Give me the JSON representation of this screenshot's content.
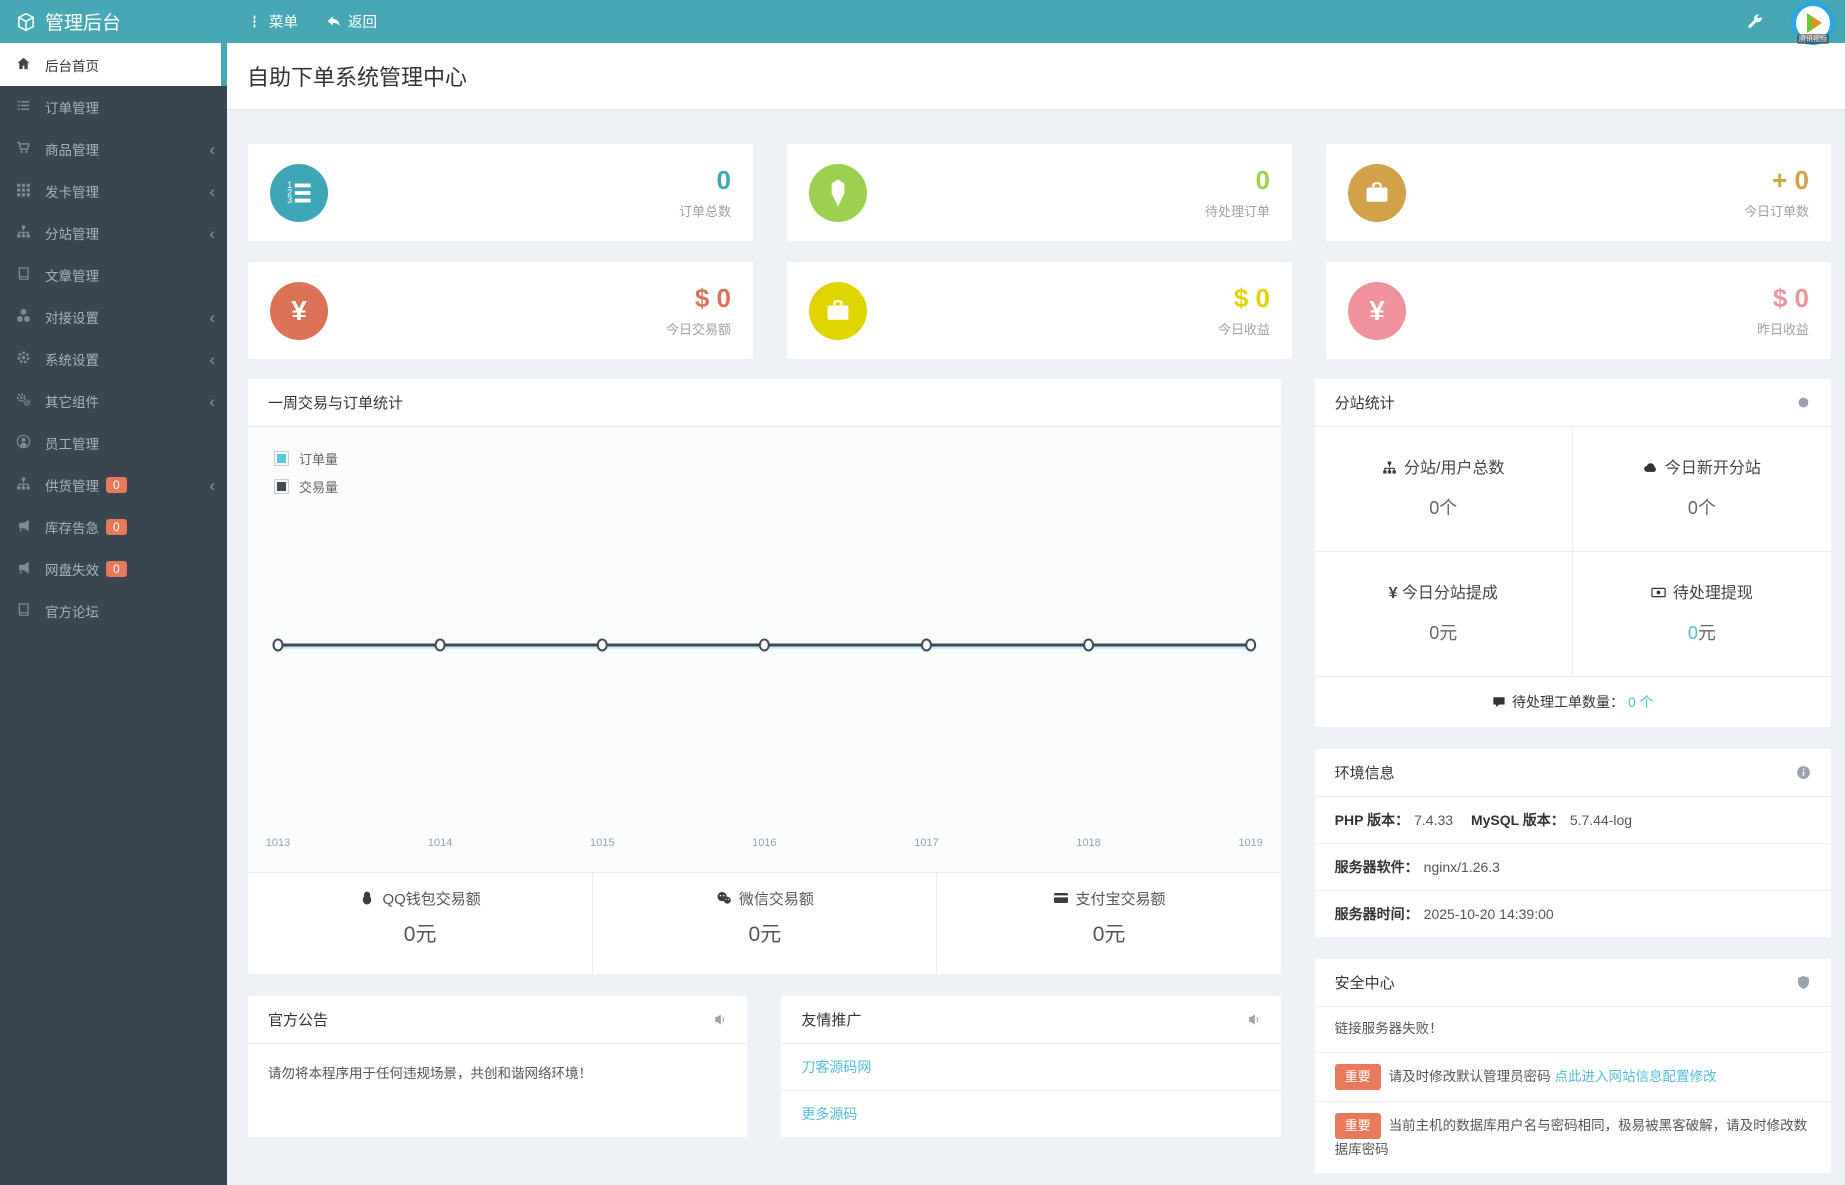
{
  "header": {
    "app_title": "管理后台",
    "menu_label": "菜单",
    "back_label": "返回",
    "logo_watermark": "腾讯视频"
  },
  "icons": {
    "chevron": "‹",
    "brand": "cube",
    "menu": "vertical-ellipsis",
    "back": "reply-arrow",
    "tools": "wrench",
    "substation_header": "gray-dot",
    "env_header": "info-circle",
    "security_header": "shield",
    "panel_announce": "bullhorn-speaker"
  },
  "page": {
    "title": "自助下单系统管理中心"
  },
  "sidebar": {
    "items": [
      {
        "label": "后台首页",
        "icon": "home",
        "active": true
      },
      {
        "label": "订单管理",
        "icon": "list"
      },
      {
        "label": "商品管理",
        "icon": "cart",
        "chevron": true
      },
      {
        "label": "发卡管理",
        "icon": "grid",
        "chevron": true
      },
      {
        "label": "分站管理",
        "icon": "sitemap",
        "chevron": true
      },
      {
        "label": "文章管理",
        "icon": "book"
      },
      {
        "label": "对接设置",
        "icon": "cubes",
        "chevron": true
      },
      {
        "label": "系统设置",
        "icon": "gear",
        "chevron": true
      },
      {
        "label": "其它组件",
        "icon": "gears",
        "chevron": true
      },
      {
        "label": "员工管理",
        "icon": "user"
      },
      {
        "label": "供货管理",
        "icon": "sitemap",
        "badge": "0",
        "chevron": true
      },
      {
        "label": "库存告急",
        "icon": "bullhorn",
        "badge": "0"
      },
      {
        "label": "网盘失效",
        "icon": "bullhorn",
        "badge": "0"
      },
      {
        "label": "官方论坛",
        "icon": "book"
      }
    ]
  },
  "stat_cards": [
    {
      "value": "0",
      "label": "订单总数",
      "icon": "ordered-list",
      "color": "#3fa6b7"
    },
    {
      "value": "0",
      "label": "待处理订单",
      "icon": "gem",
      "color": "#9cd04f"
    },
    {
      "value": "+ 0",
      "label": "今日订单数",
      "icon": "briefcase",
      "color": "#d2a24b"
    },
    {
      "value": "$ 0",
      "label": "今日交易额",
      "icon": "yen",
      "color": "#dd7356"
    },
    {
      "value": "$ 0",
      "label": "今日收益",
      "icon": "briefcase",
      "color": "#e0d400"
    },
    {
      "value": "$ 0",
      "label": "昨日收益",
      "icon": "yen",
      "color": "#f0939d"
    }
  ],
  "chart_panel": {
    "title": "一周交易与订单统计",
    "footer_stats": [
      {
        "icon": "qq-penguin",
        "label": "QQ钱包交易额",
        "value": "0元"
      },
      {
        "icon": "wechat",
        "label": "微信交易额",
        "value": "0元"
      },
      {
        "icon": "alipay-card",
        "label": "支付宝交易额",
        "value": "0元"
      }
    ]
  },
  "chart_data": {
    "type": "line",
    "title": "一周交易与订单统计",
    "x": [
      "1013",
      "1014",
      "1015",
      "1016",
      "1017",
      "1018",
      "1019"
    ],
    "series": [
      {
        "name": "订单量",
        "color": "#57c8ea",
        "values": [
          0,
          0,
          0,
          0,
          0,
          0,
          0
        ]
      },
      {
        "name": "交易量",
        "color": "#3e4a56",
        "values": [
          0,
          0,
          0,
          0,
          0,
          0,
          0
        ]
      }
    ],
    "ylim": [
      0,
      1
    ],
    "grid": false,
    "legend_position": "top-left"
  },
  "substation_panel": {
    "title": "分站统计",
    "cells": [
      {
        "icon": "sitemap",
        "label": "分站/用户总数",
        "value": "0个"
      },
      {
        "icon": "cloud",
        "label": "今日新开分站",
        "value": "0个"
      },
      {
        "icon": "yen",
        "label": "今日分站提成",
        "value": "0元"
      },
      {
        "icon": "money-bill",
        "label": "待处理提现",
        "value_num": "0",
        "value_unit": "元"
      }
    ],
    "footer": {
      "icon": "comment",
      "label": "待处理工单数量：",
      "value": "0 个"
    }
  },
  "env_panel": {
    "title": "环境信息",
    "row1": [
      {
        "k": "PHP 版本：",
        "v": "7.4.33"
      },
      {
        "k": "MySQL 版本：",
        "v": "5.7.44-log"
      }
    ],
    "row2": {
      "k": "服务器软件：",
      "v": "nginx/1.26.3"
    },
    "row3": {
      "k": "服务器时间：",
      "v": "2025-10-20 14:39:00"
    }
  },
  "security_panel": {
    "title": "安全中心",
    "rows": [
      {
        "text": "链接服务器失败！"
      },
      {
        "badge": "重要",
        "text": "请及时修改默认管理员密码 ",
        "link": "点此进入网站信息配置修改"
      },
      {
        "badge": "重要",
        "text": "当前主机的数据库用户名与密码相同，极易被黑客破解，请及时修改数据库密码"
      }
    ]
  },
  "notice_panel": {
    "title": "官方公告",
    "body": "请勿将本程序用于任何违规场景，共创和谐网络环境！"
  },
  "promo_panel": {
    "title": "友情推广",
    "links": [
      "刀客源码网",
      "更多源码"
    ]
  }
}
